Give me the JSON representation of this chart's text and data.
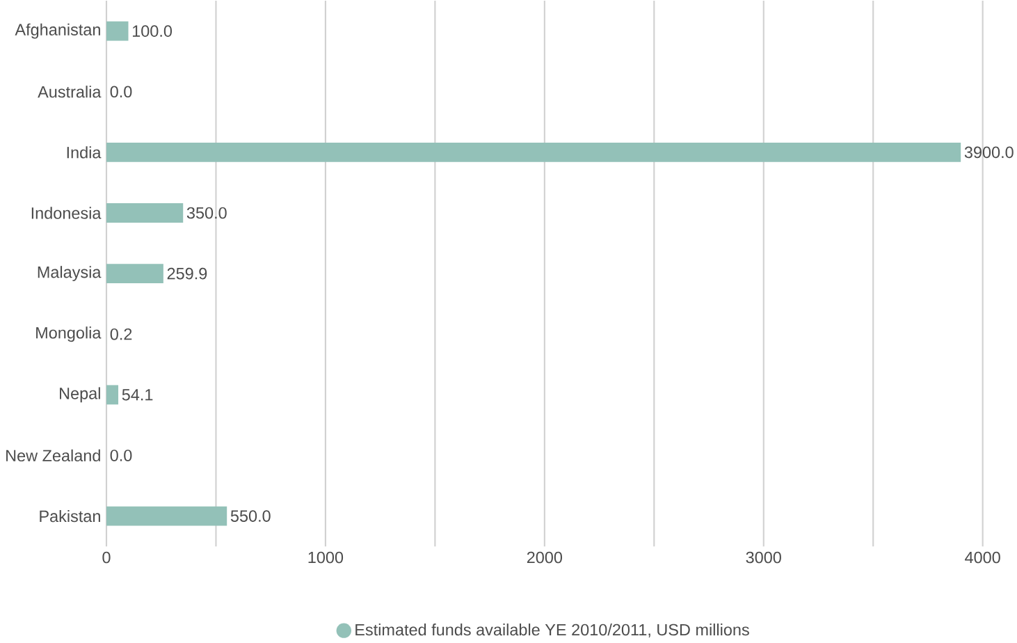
{
  "chart_data": {
    "type": "bar",
    "orientation": "horizontal",
    "categories": [
      "Afghanistan",
      "Australia",
      "India",
      "Indonesia",
      "Malaysia",
      "Mongolia",
      "Nepal",
      "New Zealand",
      "Pakistan"
    ],
    "series": [
      {
        "name": "Estimated funds available YE 2010/2011, USD millions",
        "color": "#93c1b8",
        "values": [
          100,
          0,
          3900,
          350,
          259.9,
          0.2,
          54.1,
          0,
          550
        ],
        "value_labels": [
          "100.0",
          "0.0",
          "3900.0",
          "350.0",
          "259.9",
          "0.2",
          "54.1",
          "0.0",
          "550.0"
        ]
      }
    ],
    "xlim": [
      0,
      4000
    ],
    "xticks": [
      0,
      {
        "value": 500,
        "label": null
      },
      1000,
      {
        "value": 1500,
        "label": null
      },
      2000,
      {
        "value": 2500,
        "label": null
      },
      3000,
      {
        "value": 3500,
        "label": null
      },
      4000
    ],
    "grid": "x",
    "legend": "bottom"
  }
}
